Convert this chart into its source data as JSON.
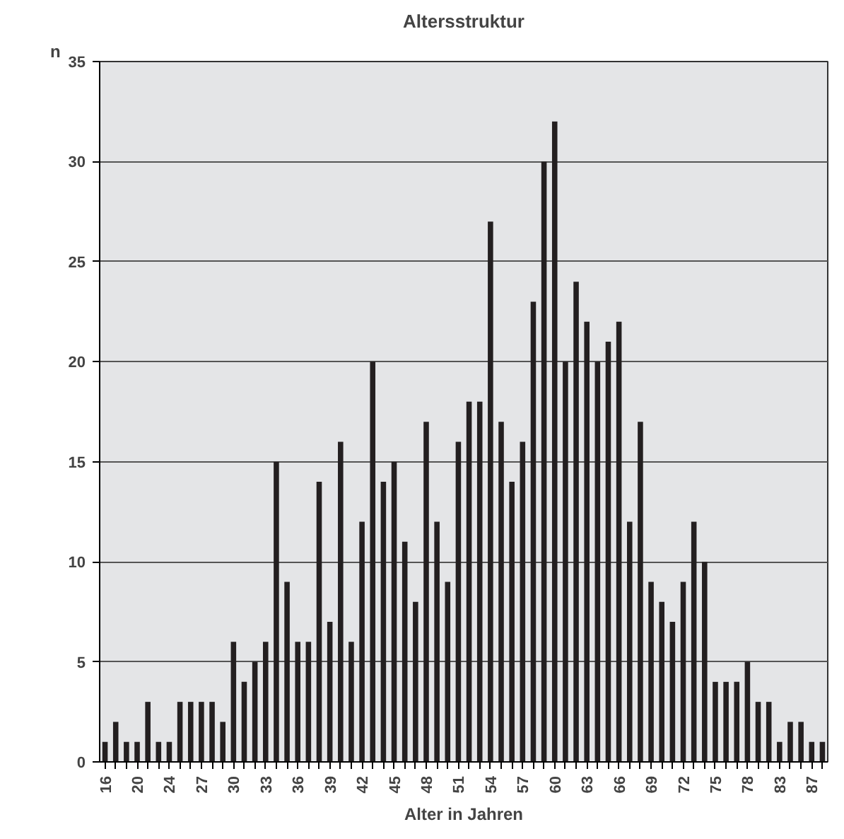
{
  "chart_data": {
    "type": "bar",
    "title": "Altersstruktur",
    "xlabel": "Alter in Jahren",
    "ylabel": "n",
    "categories": [
      "16",
      null,
      null,
      "20",
      null,
      null,
      "24",
      null,
      null,
      "27",
      null,
      null,
      "30",
      null,
      null,
      "33",
      null,
      null,
      "36",
      null,
      null,
      "39",
      null,
      null,
      "42",
      null,
      null,
      "45",
      null,
      null,
      "48",
      null,
      null,
      "51",
      null,
      null,
      "54",
      null,
      null,
      "57",
      null,
      null,
      "60",
      null,
      null,
      "63",
      null,
      null,
      "66",
      null,
      null,
      "69",
      null,
      null,
      "72",
      null,
      null,
      "75",
      null,
      null,
      "78",
      null,
      null,
      "83",
      null,
      null,
      "87",
      null
    ],
    "values": [
      1,
      2,
      1,
      1,
      3,
      1,
      1,
      3,
      3,
      3,
      3,
      2,
      6,
      4,
      5,
      6,
      15,
      9,
      6,
      6,
      14,
      7,
      16,
      6,
      12,
      20,
      14,
      15,
      11,
      8,
      17,
      12,
      9,
      16,
      18,
      18,
      27,
      17,
      14,
      16,
      23,
      30,
      32,
      20,
      24,
      22,
      20,
      21,
      22,
      12,
      17,
      9,
      8,
      7,
      9,
      12,
      10,
      4,
      4,
      4,
      5,
      3,
      3,
      1,
      2,
      2,
      1,
      1
    ],
    "color": "#231f20",
    "ylim": [
      0,
      35
    ],
    "yticks": [
      0,
      5,
      10,
      15,
      20,
      25,
      30,
      35
    ],
    "grid": "y"
  }
}
